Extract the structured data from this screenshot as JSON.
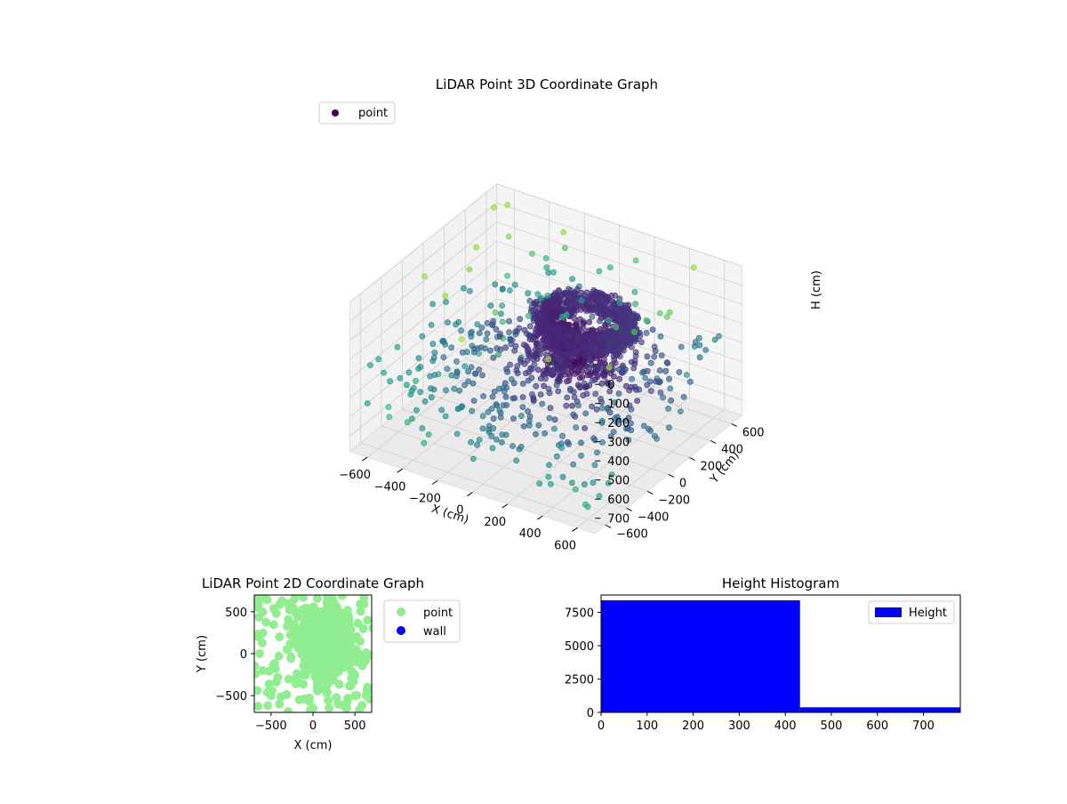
{
  "chart_data": [
    {
      "type": "scatter",
      "projection": "3d",
      "title": "LiDAR Point 3D Coordinate Graph",
      "xlabel": "X (cm)",
      "ylabel": "Y (cm)",
      "zlabel": "H (cm)",
      "xlim": [
        -700,
        700
      ],
      "ylim": [
        -700,
        700
      ],
      "zlim": [
        0,
        780
      ],
      "z_inverted": true,
      "xticks": [
        -600,
        -400,
        -200,
        0,
        200,
        400,
        600
      ],
      "yticks": [
        -600,
        -400,
        -200,
        0,
        200,
        400,
        600
      ],
      "zticks": [
        0,
        100,
        200,
        300,
        400,
        500,
        600,
        700
      ],
      "colormap": "viridis",
      "legend": {
        "entries": [
          "point"
        ],
        "position": "upper-left",
        "marker_color": "#440154"
      },
      "series": [
        {
          "name": "point",
          "description_points": [
            {
              "x": 100,
              "y": 250,
              "h": 150
            },
            {
              "x": 200,
              "y": 300,
              "h": 160
            },
            {
              "x": 300,
              "y": 250,
              "h": 170
            },
            {
              "x": 350,
              "y": 100,
              "h": 180
            },
            {
              "x": 300,
              "y": -50,
              "h": 200
            },
            {
              "x": 150,
              "y": -100,
              "h": 220
            },
            {
              "x": 0,
              "y": -50,
              "h": 210
            },
            {
              "x": -50,
              "y": 100,
              "h": 190
            },
            {
              "x": 0,
              "y": 250,
              "h": 170
            },
            {
              "x": 150,
              "y": 100,
              "h": 260
            },
            {
              "x": 50,
              "y": 0,
              "h": 300
            },
            {
              "x": 250,
              "y": 0,
              "h": 320
            },
            {
              "x": 100,
              "y": -150,
              "h": 350
            },
            {
              "x": 200,
              "y": -150,
              "h": 380
            },
            {
              "x": 0,
              "y": -200,
              "h": 400
            },
            {
              "x": -200,
              "y": -300,
              "h": 450
            },
            {
              "x": -400,
              "y": 200,
              "h": 500
            },
            {
              "x": 400,
              "y": 400,
              "h": 550
            },
            {
              "x": -500,
              "y": -500,
              "h": 700
            },
            {
              "x": 500,
              "y": -500,
              "h": 680
            },
            {
              "x": -600,
              "y": 500,
              "h": 650
            },
            {
              "x": 600,
              "y": 300,
              "h": 620
            },
            {
              "x": -300,
              "y": 600,
              "h": 600
            },
            {
              "x": 300,
              "y": -600,
              "h": 720
            },
            {
              "x": -600,
              "y": -200,
              "h": 30
            },
            {
              "x": -400,
              "y": -600,
              "h": 40
            },
            {
              "x": 0,
              "y": -650,
              "h": 20
            },
            {
              "x": 400,
              "y": -650,
              "h": 35
            },
            {
              "x": 650,
              "y": -400,
              "h": 25
            },
            {
              "x": 650,
              "y": 0,
              "h": 30
            },
            {
              "x": 650,
              "y": 400,
              "h": 20
            },
            {
              "x": -650,
              "y": 200,
              "h": 30
            },
            {
              "x": -650,
              "y": 600,
              "h": 40
            }
          ]
        }
      ]
    },
    {
      "type": "scatter",
      "title": "LiDAR Point 2D Coordinate Graph",
      "xlabel": "X (cm)",
      "ylabel": "Y (cm)",
      "xlim": [
        -700,
        700
      ],
      "ylim": [
        -700,
        700
      ],
      "xticks": [
        -500,
        0,
        500
      ],
      "yticks": [
        -500,
        0,
        500
      ],
      "legend": {
        "entries": [
          "point",
          "wall"
        ],
        "position": "outside-right"
      },
      "series": [
        {
          "name": "point",
          "color": "#90ee90",
          "points": [
            [
              100,
              250
            ],
            [
              200,
              300
            ],
            [
              300,
              250
            ],
            [
              350,
              100
            ],
            [
              300,
              -50
            ],
            [
              150,
              -100
            ],
            [
              0,
              -50
            ],
            [
              -50,
              100
            ],
            [
              0,
              250
            ],
            [
              150,
              100
            ],
            [
              50,
              0
            ],
            [
              250,
              0
            ],
            [
              100,
              -150
            ],
            [
              200,
              -150
            ],
            [
              0,
              -200
            ],
            [
              -200,
              -300
            ],
            [
              -400,
              200
            ],
            [
              400,
              400
            ],
            [
              -500,
              -500
            ],
            [
              500,
              -500
            ],
            [
              -600,
              500
            ],
            [
              600,
              300
            ],
            [
              -300,
              600
            ],
            [
              300,
              -600
            ],
            [
              -600,
              -200
            ],
            [
              -400,
              -600
            ],
            [
              0,
              -650
            ],
            [
              400,
              -650
            ],
            [
              650,
              -400
            ],
            [
              650,
              0
            ],
            [
              650,
              400
            ],
            [
              -650,
              200
            ],
            [
              -650,
              600
            ]
          ]
        },
        {
          "name": "wall",
          "color": "#0000ff",
          "points": []
        }
      ]
    },
    {
      "type": "bar",
      "title": "Height Histogram",
      "xlim": [
        0,
        780
      ],
      "ylim": [
        0,
        8800
      ],
      "xticks": [
        0,
        100,
        200,
        300,
        400,
        500,
        600,
        700
      ],
      "yticks": [
        0,
        2500,
        5000,
        7500
      ],
      "legend": {
        "entries": [
          "Height"
        ],
        "position": "upper-right"
      },
      "series": [
        {
          "name": "Height",
          "color": "#0000ff",
          "bins": [
            {
              "start": 0,
              "end": 432,
              "count": 8400
            },
            {
              "start": 432,
              "end": 780,
              "count": 380
            }
          ]
        }
      ]
    }
  ]
}
